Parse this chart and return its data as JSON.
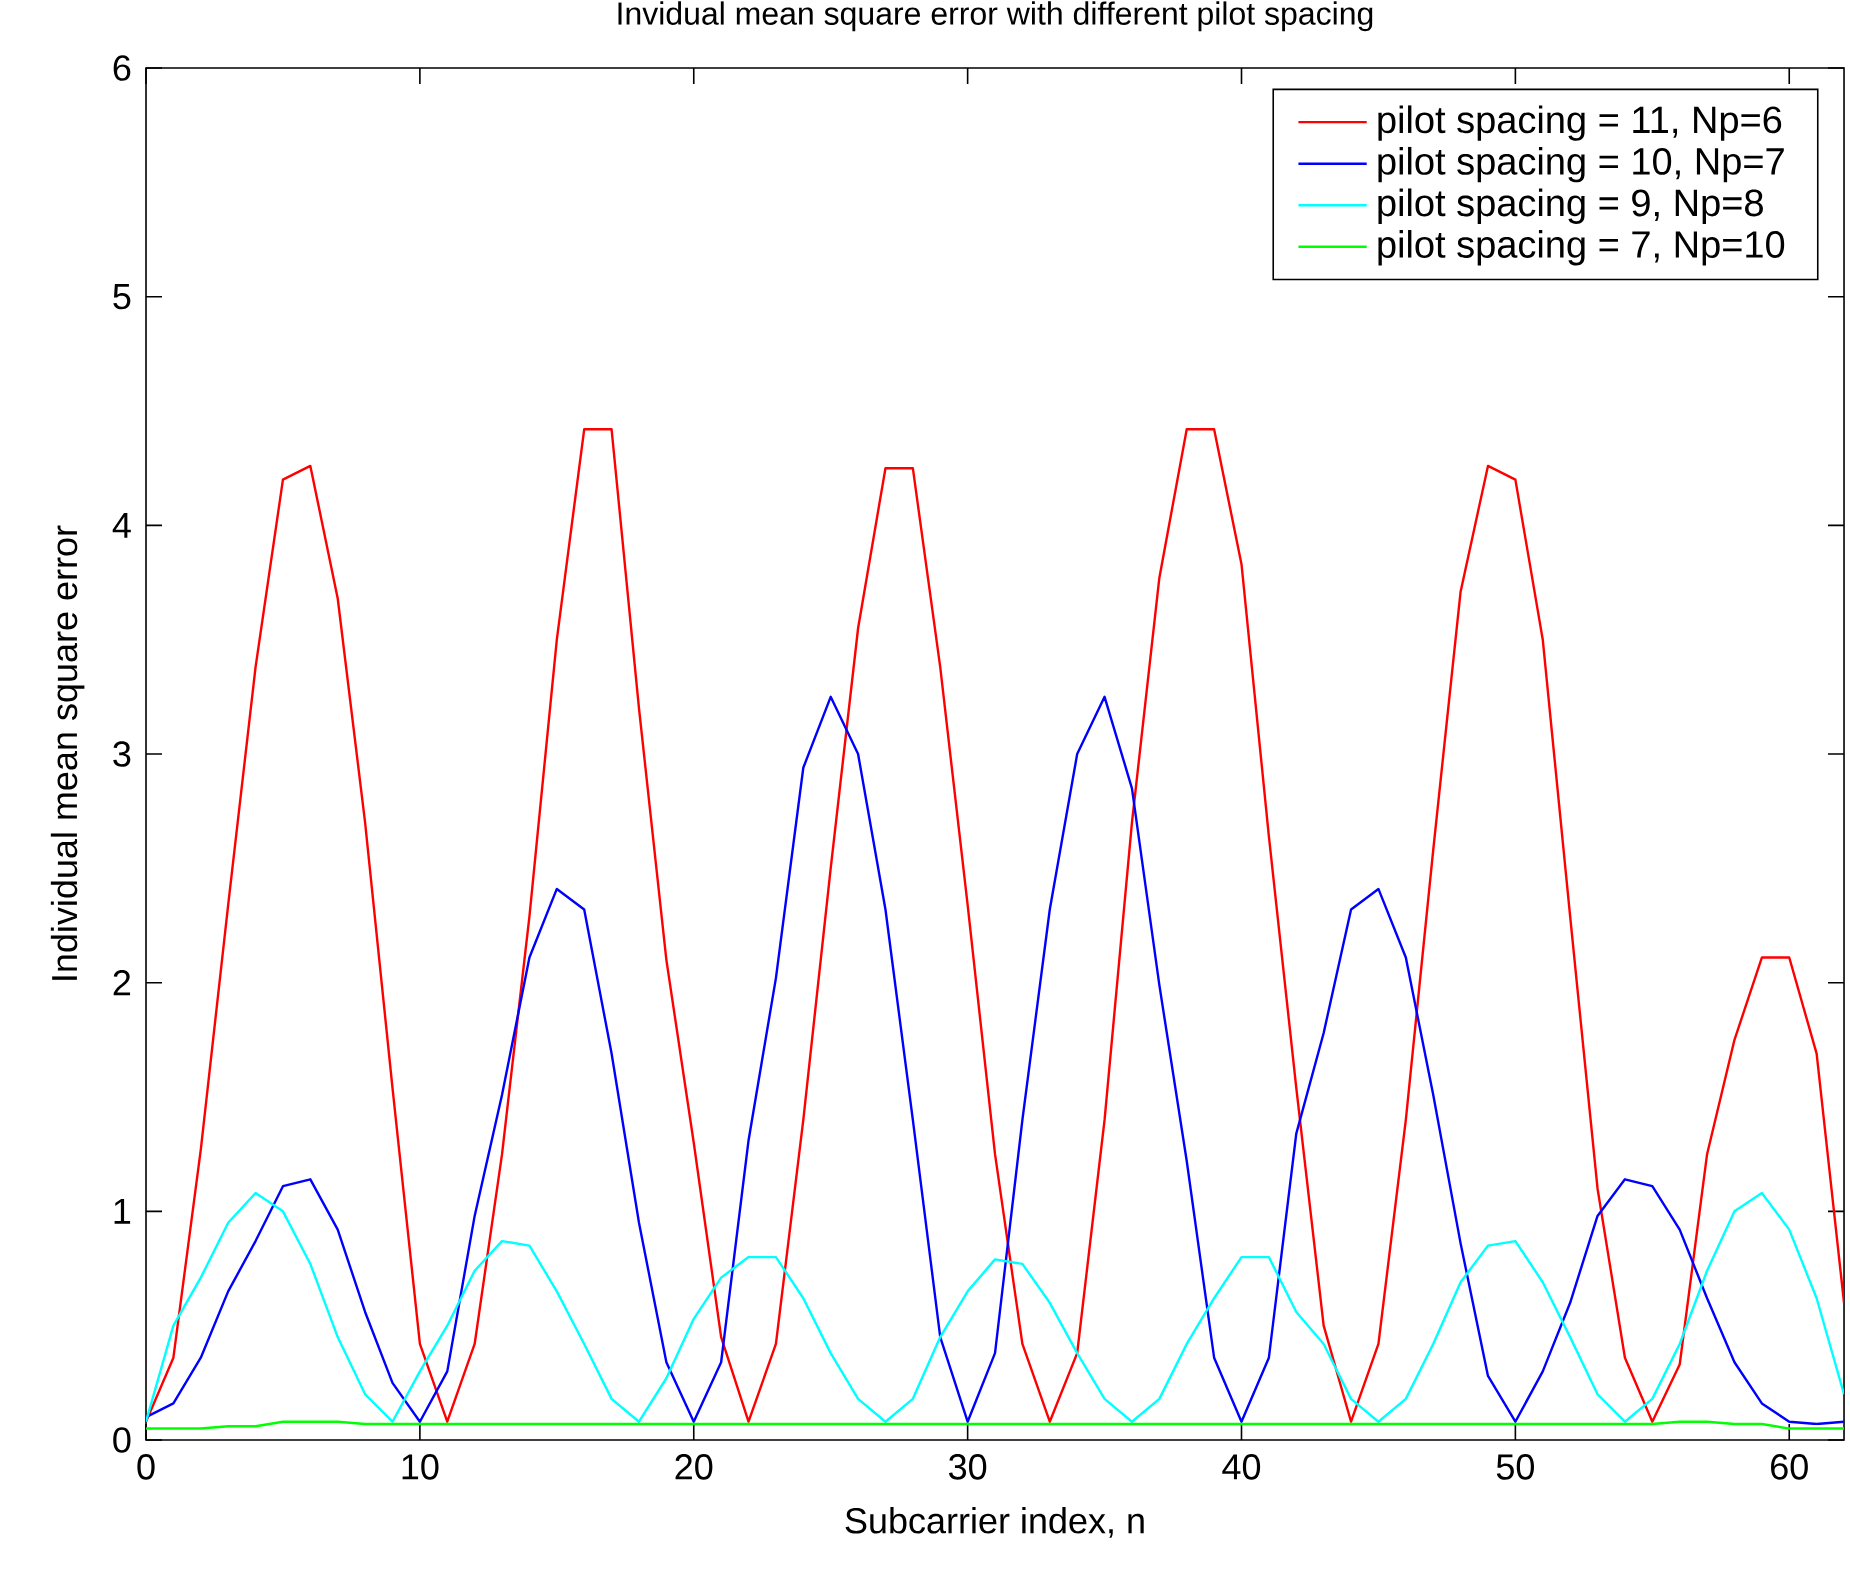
{
  "chart_data": {
    "type": "line",
    "title": "Invidual mean square error with different pilot spacing",
    "xlabel": "Subcarrier index, n",
    "ylabel": "Individual mean square error",
    "x": [
      0,
      1,
      2,
      3,
      4,
      5,
      6,
      7,
      8,
      9,
      10,
      11,
      12,
      13,
      14,
      15,
      16,
      17,
      18,
      19,
      20,
      21,
      22,
      23,
      24,
      25,
      26,
      27,
      28,
      29,
      30,
      31,
      32,
      33,
      34,
      35,
      36,
      37,
      38,
      39,
      40,
      41,
      42,
      43,
      44,
      45,
      46,
      47,
      48,
      49,
      50,
      51,
      52,
      53,
      54,
      55,
      56,
      57,
      58,
      59,
      60,
      61,
      62
    ],
    "series": [
      {
        "name": "pilot spacing = 11, Np=6",
        "color": "#ff0000",
        "values": [
          0.08,
          0.36,
          1.27,
          2.34,
          3.38,
          4.2,
          4.26,
          3.68,
          2.7,
          1.54,
          0.42,
          0.08,
          0.42,
          1.25,
          2.29,
          3.5,
          4.42,
          4.42,
          3.2,
          2.1,
          1.3,
          0.45,
          0.08,
          0.42,
          1.4,
          2.5,
          3.55,
          4.25,
          4.25,
          3.38,
          2.34,
          1.25,
          0.42,
          0.08,
          0.38,
          1.4,
          2.7,
          3.77,
          4.42,
          4.42,
          3.83,
          2.64,
          1.54,
          0.5,
          0.08,
          0.42,
          1.4,
          2.58,
          3.71,
          4.26,
          4.2,
          3.5,
          2.29,
          1.1,
          0.36,
          0.08,
          0.33,
          1.25,
          1.75,
          2.11,
          2.11,
          1.69,
          0.6
        ]
      },
      {
        "name": "pilot spacing = 10, Np=7",
        "color": "#0000ff",
        "values": [
          0.1,
          0.16,
          0.36,
          0.65,
          0.87,
          1.11,
          1.14,
          0.92,
          0.56,
          0.25,
          0.08,
          0.3,
          0.98,
          1.51,
          2.11,
          2.41,
          2.32,
          1.69,
          0.95,
          0.34,
          0.08,
          0.34,
          1.31,
          2.02,
          2.94,
          3.25,
          3.0,
          2.32,
          1.4,
          0.45,
          0.08,
          0.38,
          1.4,
          2.32,
          3.0,
          3.25,
          2.85,
          1.99,
          1.22,
          0.36,
          0.08,
          0.36,
          1.34,
          1.78,
          2.32,
          2.41,
          2.11,
          1.51,
          0.86,
          0.28,
          0.08,
          0.3,
          0.6,
          0.98,
          1.14,
          1.11,
          0.92,
          0.62,
          0.34,
          0.16,
          0.08,
          0.07,
          0.08
        ]
      },
      {
        "name": "pilot spacing = 9, Np=8",
        "color": "#00ffff",
        "values": [
          0.08,
          0.5,
          0.71,
          0.95,
          1.08,
          1.0,
          0.77,
          0.45,
          0.2,
          0.08,
          0.3,
          0.5,
          0.74,
          0.87,
          0.85,
          0.65,
          0.42,
          0.18,
          0.08,
          0.27,
          0.53,
          0.71,
          0.8,
          0.8,
          0.62,
          0.38,
          0.18,
          0.08,
          0.18,
          0.45,
          0.65,
          0.79,
          0.77,
          0.6,
          0.38,
          0.18,
          0.08,
          0.18,
          0.42,
          0.62,
          0.8,
          0.8,
          0.56,
          0.42,
          0.18,
          0.08,
          0.18,
          0.42,
          0.69,
          0.85,
          0.87,
          0.69,
          0.45,
          0.2,
          0.08,
          0.18,
          0.42,
          0.74,
          1.0,
          1.08,
          0.92,
          0.62,
          0.2
        ]
      },
      {
        "name": "pilot spacing = 7, Np=10",
        "color": "#00ff00",
        "values": [
          0.05,
          0.05,
          0.05,
          0.06,
          0.06,
          0.08,
          0.08,
          0.08,
          0.07,
          0.07,
          0.07,
          0.07,
          0.07,
          0.07,
          0.07,
          0.07,
          0.07,
          0.07,
          0.07,
          0.07,
          0.07,
          0.07,
          0.07,
          0.07,
          0.07,
          0.07,
          0.07,
          0.07,
          0.07,
          0.07,
          0.07,
          0.07,
          0.07,
          0.07,
          0.07,
          0.07,
          0.07,
          0.07,
          0.07,
          0.07,
          0.07,
          0.07,
          0.07,
          0.07,
          0.07,
          0.07,
          0.07,
          0.07,
          0.07,
          0.07,
          0.07,
          0.07,
          0.07,
          0.07,
          0.07,
          0.07,
          0.08,
          0.08,
          0.07,
          0.07,
          0.05,
          0.05,
          0.05
        ]
      }
    ],
    "xlim": [
      0,
      62
    ],
    "ylim": [
      0,
      6
    ],
    "xticks": [
      0,
      10,
      20,
      30,
      40,
      50,
      60
    ],
    "yticks": [
      0,
      1,
      2,
      3,
      4,
      5,
      6
    ],
    "legend": "top right",
    "line_style": "solid"
  }
}
